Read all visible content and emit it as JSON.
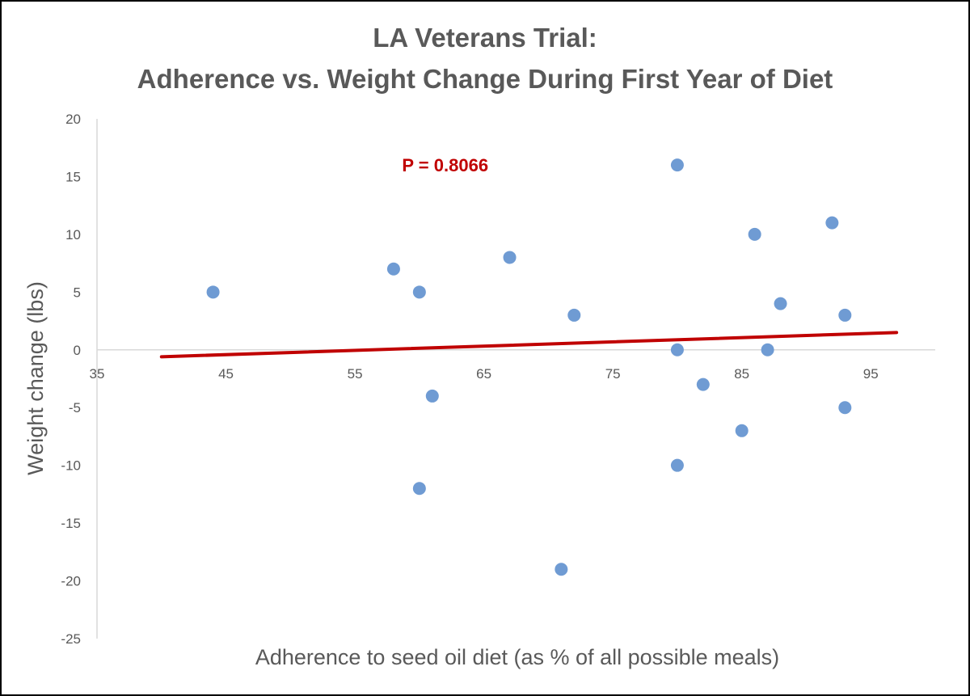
{
  "chart_data": {
    "type": "scatter",
    "title_lines": [
      "LA Veterans Trial:",
      "Adherence vs. Weight Change During First Year of Diet"
    ],
    "xlabel": "Adherence to seed oil diet (as % of all possible meals)",
    "ylabel": "Weight change (lbs)",
    "xlim": [
      35,
      100
    ],
    "ylim": [
      -25,
      20
    ],
    "x_ticks": [
      35,
      45,
      55,
      65,
      75,
      85,
      95
    ],
    "y_ticks": [
      20,
      15,
      10,
      5,
      0,
      -5,
      -10,
      -15,
      -20,
      -25
    ],
    "points": [
      {
        "x": 44,
        "y": 5
      },
      {
        "x": 58,
        "y": 7
      },
      {
        "x": 60,
        "y": 5
      },
      {
        "x": 60,
        "y": -12
      },
      {
        "x": 61,
        "y": -4
      },
      {
        "x": 67,
        "y": 8
      },
      {
        "x": 71,
        "y": -19
      },
      {
        "x": 72,
        "y": 3
      },
      {
        "x": 80,
        "y": 16
      },
      {
        "x": 80,
        "y": 0
      },
      {
        "x": 80,
        "y": -10
      },
      {
        "x": 82,
        "y": -3
      },
      {
        "x": 85,
        "y": -7
      },
      {
        "x": 86,
        "y": 10
      },
      {
        "x": 87,
        "y": 0
      },
      {
        "x": 88,
        "y": 4
      },
      {
        "x": 92,
        "y": 11
      },
      {
        "x": 93,
        "y": 3
      },
      {
        "x": 93,
        "y": -5
      }
    ],
    "trendline": {
      "x": [
        40,
        97
      ],
      "y": [
        -0.6,
        1.5
      ]
    },
    "annotation": "P = 0.8066",
    "colors": {
      "points": "#6f9bd3",
      "trendline": "#c00000",
      "text": "#595959",
      "axis": "#d9d9d9"
    },
    "grid": false,
    "legend": "none"
  }
}
